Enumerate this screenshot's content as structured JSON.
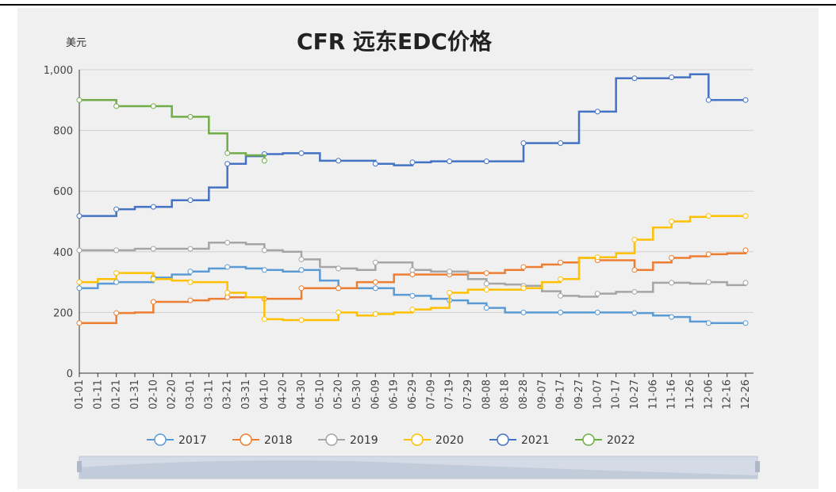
{
  "chart_data": {
    "type": "step-line",
    "title": "CFR 远东EDC价格",
    "y_label": "美元",
    "categories": [
      "01-01",
      "01-11",
      "01-21",
      "01-31",
      "02-10",
      "02-20",
      "03-01",
      "03-11",
      "03-21",
      "03-31",
      "04-10",
      "04-20",
      "04-30",
      "05-10",
      "05-20",
      "05-30",
      "06-09",
      "06-19",
      "06-29",
      "07-09",
      "07-19",
      "07-29",
      "08-08",
      "08-18",
      "08-28",
      "09-07",
      "09-17",
      "09-27",
      "10-07",
      "10-17",
      "10-27",
      "11-06",
      "11-16",
      "11-26",
      "12-06",
      "12-16",
      "12-26"
    ],
    "ylim": [
      0,
      1000
    ],
    "yticks": [
      0,
      200,
      400,
      600,
      800,
      {
        "value": 1000,
        "label": "1,000"
      }
    ],
    "grid": true,
    "series": [
      {
        "name": "2017",
        "color": "#5b9bd5",
        "values": [
          280,
          295,
          300,
          300,
          315,
          325,
          335,
          345,
          350,
          345,
          340,
          335,
          340,
          305,
          280,
          280,
          280,
          258,
          255,
          245,
          240,
          230,
          215,
          200,
          200,
          200,
          200,
          200,
          200,
          200,
          198,
          190,
          185,
          170,
          165,
          165,
          165
        ]
      },
      {
        "name": "2018",
        "color": "#ed7d31",
        "values": [
          165,
          165,
          198,
          200,
          235,
          235,
          240,
          245,
          250,
          250,
          245,
          245,
          280,
          280,
          280,
          300,
          300,
          325,
          325,
          325,
          325,
          330,
          330,
          340,
          350,
          358,
          365,
          380,
          372,
          372,
          340,
          365,
          380,
          385,
          392,
          395,
          405
        ]
      },
      {
        "name": "2019",
        "color": "#a5a5a5",
        "values": [
          405,
          405,
          405,
          410,
          410,
          410,
          410,
          430,
          430,
          425,
          405,
          400,
          375,
          350,
          345,
          340,
          365,
          365,
          340,
          335,
          335,
          310,
          295,
          292,
          288,
          270,
          255,
          252,
          262,
          268,
          268,
          298,
          298,
          295,
          300,
          290,
          298
        ]
      },
      {
        "name": "2020",
        "color": "#ffc000",
        "values": [
          300,
          310,
          330,
          330,
          310,
          305,
          300,
          300,
          265,
          250,
          178,
          175,
          175,
          175,
          200,
          190,
          195,
          200,
          210,
          215,
          265,
          275,
          275,
          275,
          280,
          300,
          310,
          380,
          382,
          395,
          440,
          480,
          500,
          515,
          518,
          518,
          518
        ]
      },
      {
        "name": "2021",
        "color": "#4472c4",
        "values": [
          518,
          518,
          540,
          548,
          548,
          570,
          570,
          612,
          690,
          715,
          722,
          725,
          725,
          700,
          700,
          700,
          690,
          685,
          695,
          698,
          698,
          698,
          698,
          698,
          758,
          758,
          758,
          862,
          862,
          972,
          972,
          972,
          975,
          985,
          900,
          900,
          900
        ]
      },
      {
        "name": "2022",
        "color": "#70ad47",
        "values": [
          900,
          900,
          880,
          880,
          880,
          845,
          845,
          790,
          725,
          718,
          700,
          null,
          null,
          null,
          null,
          null,
          null,
          null,
          null,
          null,
          null,
          null,
          null,
          null,
          null,
          null,
          null,
          null,
          null,
          null,
          null,
          null,
          null,
          null,
          null,
          null,
          null
        ]
      }
    ]
  }
}
